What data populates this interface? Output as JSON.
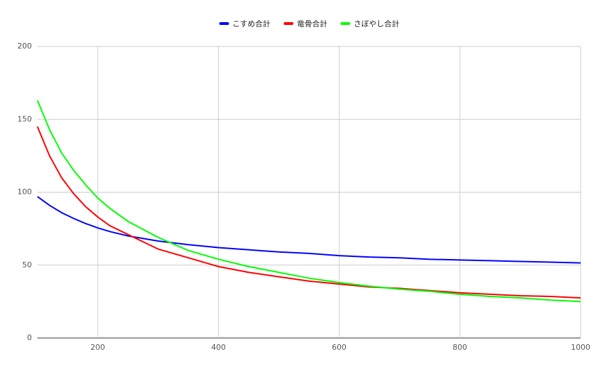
{
  "chart_data": {
    "type": "line",
    "x": [
      100,
      120,
      140,
      160,
      180,
      200,
      220,
      250,
      300,
      350,
      400,
      450,
      500,
      550,
      600,
      650,
      700,
      750,
      800,
      850,
      900,
      950,
      1000
    ],
    "series": [
      {
        "name": "こすめ合計",
        "color": "#0000ff",
        "values": [
          97,
          91,
          86,
          82,
          78.5,
          75.5,
          73,
          70,
          66.5,
          64,
          62,
          60.5,
          59,
          58,
          56.5,
          55.5,
          55,
          54,
          53.5,
          53,
          52.5,
          52,
          51.5
        ]
      },
      {
        "name": "竜骨合計",
        "color": "#ff0000",
        "values": [
          145,
          125,
          110,
          99,
          90,
          83,
          77,
          71,
          61,
          55,
          49,
          45,
          42,
          39,
          37,
          35,
          34,
          32.5,
          31,
          30,
          29,
          28.5,
          27.5
        ]
      },
      {
        "name": "さぼやし合計",
        "color": "#00ff00",
        "values": [
          163,
          143,
          127,
          115,
          105,
          96,
          89,
          80,
          69,
          60,
          54,
          49,
          45,
          41,
          38,
          35.5,
          33.5,
          32,
          30,
          28.5,
          27.5,
          26,
          25
        ]
      }
    ],
    "xlim": [
      100,
      1000
    ],
    "xticks": [
      200,
      400,
      600,
      800,
      1000
    ],
    "ylim": [
      0,
      200
    ],
    "yticks": [
      0,
      50,
      100,
      150,
      200
    ],
    "grid": true,
    "legend": "top"
  }
}
